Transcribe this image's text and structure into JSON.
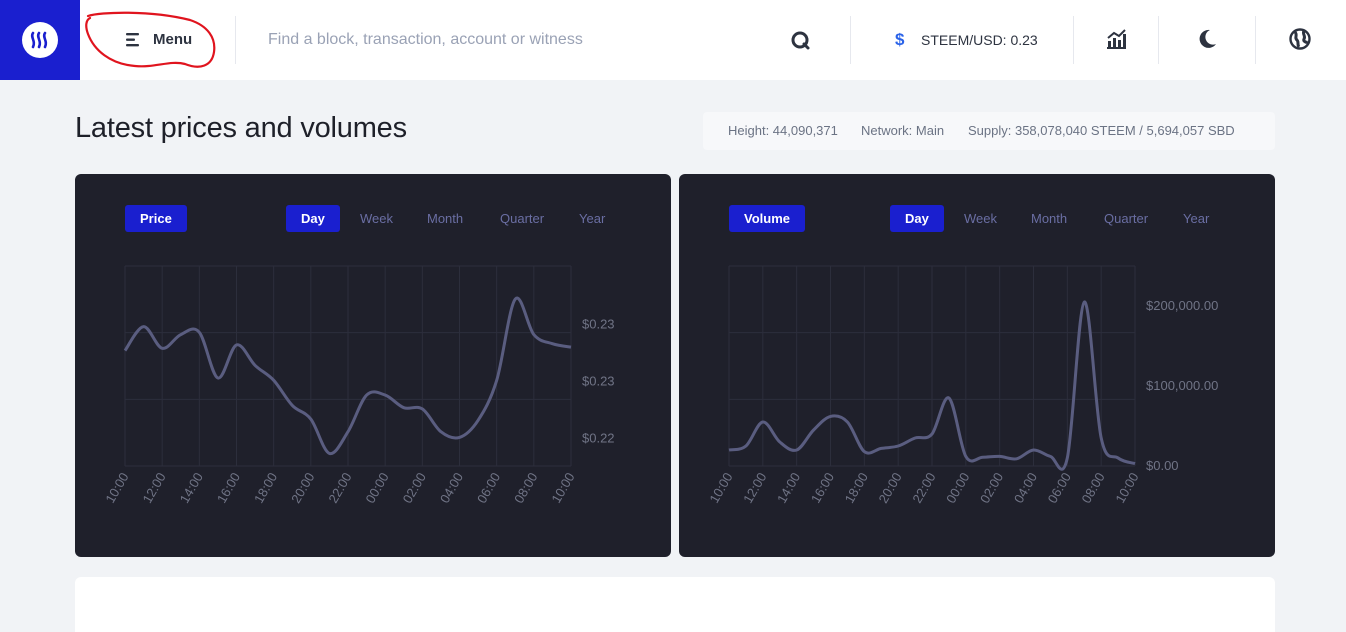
{
  "header": {
    "menu_label": "Menu",
    "search_placeholder": "Find a block, transaction, account or witness",
    "price_ticker": "STEEM/USD: 0.23",
    "colors": {
      "brand": "#1a1fcf",
      "ticker_accent": "#2b63e8",
      "highlight": "#e0141e"
    },
    "icons": [
      "steem-logo-icon",
      "menu-icon",
      "search-icon",
      "dollar-icon",
      "chart-icon",
      "moon-icon",
      "globe-icon"
    ]
  },
  "page": {
    "title": "Latest prices and volumes",
    "stats": {
      "height": "Height: 44,090,371",
      "network": "Network: Main",
      "supply": "Supply: 358,078,040 STEEM / 5,694,057 SBD"
    }
  },
  "price_card": {
    "badge": "Price",
    "periods": [
      "Day",
      "Week",
      "Month",
      "Quarter",
      "Year"
    ],
    "active_period": "Day"
  },
  "volume_card": {
    "badge": "Volume",
    "periods": [
      "Day",
      "Week",
      "Month",
      "Quarter",
      "Year"
    ],
    "active_period": "Day"
  },
  "chart_data": [
    {
      "type": "line",
      "title": "Price",
      "x": [
        "10:00",
        "11:00",
        "12:00",
        "13:00",
        "14:00",
        "15:00",
        "16:00",
        "17:00",
        "18:00",
        "19:00",
        "20:00",
        "21:00",
        "22:00",
        "23:00",
        "00:00",
        "01:00",
        "02:00",
        "03:00",
        "04:00",
        "05:00",
        "06:00",
        "07:00",
        "08:00",
        "09:00",
        "10:00"
      ],
      "xticks": [
        "10:00",
        "12:00",
        "14:00",
        "16:00",
        "18:00",
        "20:00",
        "22:00",
        "00:00",
        "02:00",
        "04:00",
        "06:00",
        "08:00",
        "10:00"
      ],
      "values": [
        0.2291,
        0.2312,
        0.2293,
        0.2305,
        0.2307,
        0.2267,
        0.2296,
        0.2278,
        0.2265,
        0.2243,
        0.2231,
        0.2201,
        0.222,
        0.2252,
        0.2252,
        0.2241,
        0.224,
        0.222,
        0.2215,
        0.223,
        0.2265,
        0.2336,
        0.2305,
        0.2297,
        0.2294
      ],
      "ylim": [
        0.219,
        0.2365
      ],
      "ytick_values": [
        0.2214,
        0.2264,
        0.2314
      ],
      "ytick_labels": [
        "$0.22",
        "$0.23",
        "$0.23"
      ],
      "xlabel": "",
      "ylabel": ""
    },
    {
      "type": "line",
      "title": "Volume",
      "x": [
        "10:00",
        "11:00",
        "12:00",
        "13:00",
        "14:00",
        "15:00",
        "16:00",
        "17:00",
        "18:00",
        "19:00",
        "20:00",
        "21:00",
        "22:00",
        "23:00",
        "00:00",
        "01:00",
        "02:00",
        "03:00",
        "04:00",
        "05:00",
        "06:00",
        "07:00",
        "08:00",
        "09:00",
        "10:00"
      ],
      "xticks": [
        "10:00",
        "12:00",
        "14:00",
        "16:00",
        "18:00",
        "20:00",
        "22:00",
        "00:00",
        "02:00",
        "04:00",
        "06:00",
        "08:00",
        "10:00"
      ],
      "values": [
        20000,
        25000,
        55000,
        30000,
        20000,
        45000,
        62000,
        55000,
        18000,
        22000,
        25000,
        35000,
        40000,
        85000,
        12000,
        11000,
        12000,
        9000,
        20000,
        12000,
        10000,
        205000,
        35000,
        10000,
        3000
      ],
      "ylim": [
        0,
        250000
      ],
      "ytick_values": [
        0,
        100000,
        200000
      ],
      "ytick_labels": [
        "$0.00",
        "$100,000.00",
        "$200,000.00"
      ],
      "xlabel": "",
      "ylabel": ""
    }
  ]
}
